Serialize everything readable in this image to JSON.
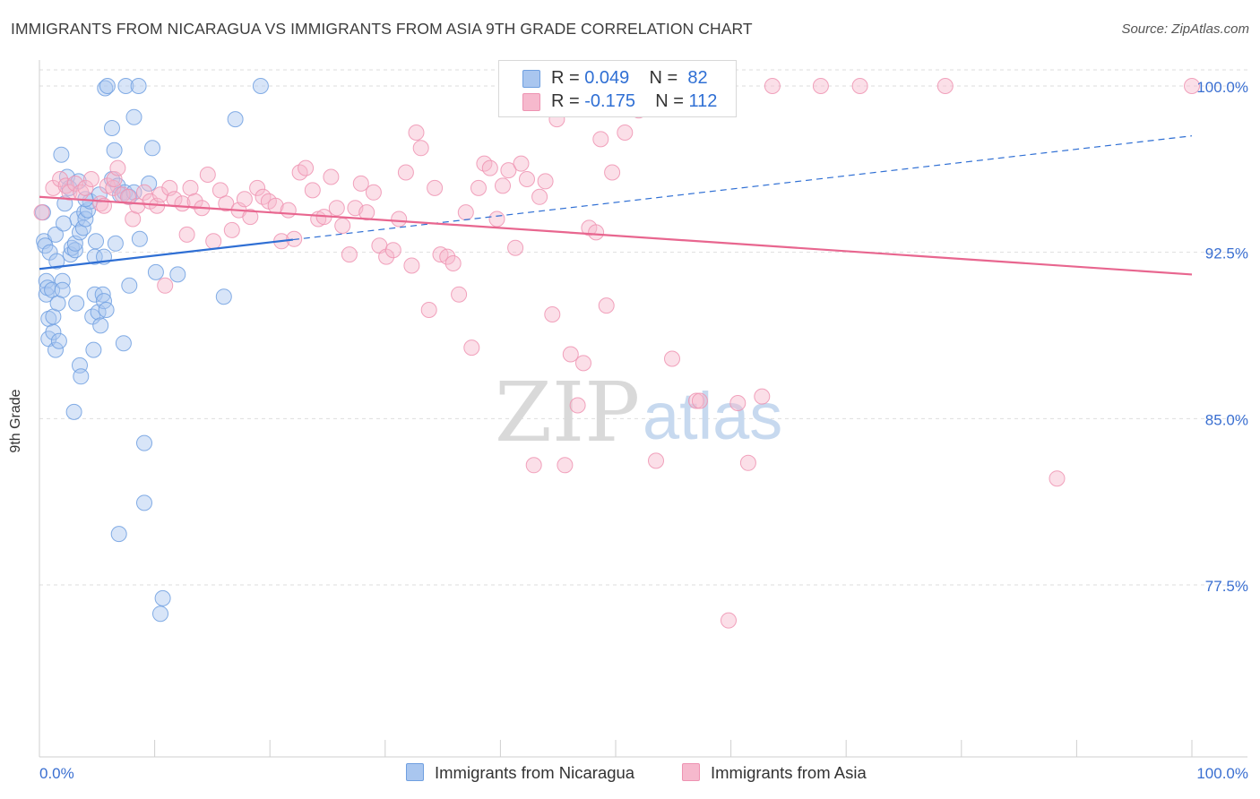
{
  "title": "IMMIGRANTS FROM NICARAGUA VS IMMIGRANTS FROM ASIA 9TH GRADE CORRELATION CHART",
  "source": "Source: ZipAtlas.com",
  "watermark": {
    "zip": "ZIP",
    "atlas": "atlas"
  },
  "legend": {
    "nicaragua": {
      "r_label": "R =",
      "r_value": "0.049",
      "n_label": "N =",
      "n_value": "82"
    },
    "asia": {
      "r_label": "R =",
      "r_value": "-0.175",
      "n_label": "N =",
      "n_value": "112"
    }
  },
  "bottom_legend": {
    "nicaragua": "Immigrants from Nicaragua",
    "asia": "Immigrants from Asia"
  },
  "colors": {
    "nicaragua_fill": "#a9c6ef",
    "nicaragua_stroke": "#6f9fe0",
    "nicaragua_line": "#2f6fd4",
    "asia_fill": "#f6b9cd",
    "asia_stroke": "#ee93b2",
    "asia_line": "#e8668f",
    "tick_label": "#3a6fd1",
    "grid": "#dedede"
  },
  "chart_data": {
    "type": "scatter",
    "title": "IMMIGRANTS FROM NICARAGUA VS IMMIGRANTS FROM ASIA 9TH GRADE CORRELATION CHART",
    "xlabel": "",
    "ylabel": "9th Grade",
    "xlim": [
      0,
      100
    ],
    "ylim": [
      70.0,
      100.8
    ],
    "x_tick_labels": [
      "0.0%",
      "100.0%"
    ],
    "y_ticks": [
      77.5,
      85.0,
      92.5,
      100.0
    ],
    "y_tick_labels": [
      "77.5%",
      "85.0%",
      "92.5%",
      "100.0%"
    ],
    "grid": true,
    "series": [
      {
        "name": "Immigrants from Nicaragua",
        "r": 0.049,
        "n": 82,
        "trend": {
          "x0": 0,
          "y0": 91.75,
          "x1": 100,
          "y1": 97.75,
          "solid_until": 22
        },
        "points": [
          [
            0.3,
            94.3
          ],
          [
            0.4,
            93.0
          ],
          [
            0.5,
            92.8
          ],
          [
            0.6,
            91.2
          ],
          [
            0.6,
            90.6
          ],
          [
            0.7,
            90.9
          ],
          [
            0.8,
            89.5
          ],
          [
            0.8,
            88.6
          ],
          [
            0.9,
            92.5
          ],
          [
            1.1,
            90.8
          ],
          [
            1.2,
            89.6
          ],
          [
            1.2,
            88.9
          ],
          [
            1.4,
            88.1
          ],
          [
            1.5,
            92.1
          ],
          [
            1.6,
            90.2
          ],
          [
            1.7,
            88.5
          ],
          [
            1.9,
            96.9
          ],
          [
            2.0,
            91.2
          ],
          [
            2.0,
            90.8
          ],
          [
            2.2,
            94.7
          ],
          [
            2.4,
            95.9
          ],
          [
            2.6,
            95.4
          ],
          [
            2.7,
            92.4
          ],
          [
            2.8,
            92.7
          ],
          [
            3.0,
            85.3
          ],
          [
            3.1,
            92.6
          ],
          [
            3.1,
            92.9
          ],
          [
            3.2,
            90.2
          ],
          [
            3.3,
            94.0
          ],
          [
            3.5,
            93.4
          ],
          [
            3.5,
            87.4
          ],
          [
            3.6,
            86.9
          ],
          [
            3.8,
            93.6
          ],
          [
            3.9,
            94.3
          ],
          [
            4.0,
            94.0
          ],
          [
            4.2,
            94.4
          ],
          [
            4.4,
            94.8
          ],
          [
            4.6,
            89.6
          ],
          [
            4.7,
            88.1
          ],
          [
            4.8,
            92.3
          ],
          [
            4.8,
            90.6
          ],
          [
            4.9,
            93.0
          ],
          [
            5.1,
            89.8
          ],
          [
            5.3,
            89.2
          ],
          [
            5.5,
            90.6
          ],
          [
            5.6,
            90.3
          ],
          [
            5.6,
            92.3
          ],
          [
            5.8,
            89.9
          ],
          [
            5.2,
            95.1
          ],
          [
            5.7,
            99.9
          ],
          [
            5.9,
            100.0
          ],
          [
            6.3,
            98.1
          ],
          [
            6.3,
            95.8
          ],
          [
            6.5,
            97.1
          ],
          [
            6.6,
            92.9
          ],
          [
            6.8,
            95.5
          ],
          [
            7.0,
            95.1
          ],
          [
            7.3,
            88.4
          ],
          [
            7.5,
            100.0
          ],
          [
            7.4,
            95.2
          ],
          [
            7.8,
            95.0
          ],
          [
            7.8,
            91.0
          ],
          [
            8.2,
            98.6
          ],
          [
            8.2,
            95.2
          ],
          [
            8.6,
            100.0
          ],
          [
            8.7,
            93.1
          ],
          [
            9.1,
            83.9
          ],
          [
            9.1,
            81.2
          ],
          [
            9.5,
            95.6
          ],
          [
            9.8,
            97.2
          ],
          [
            10.1,
            91.6
          ],
          [
            10.5,
            76.2
          ],
          [
            10.7,
            76.9
          ],
          [
            12.0,
            91.5
          ],
          [
            16.0,
            90.5
          ],
          [
            17.0,
            98.5
          ],
          [
            19.2,
            100.0
          ],
          [
            3.4,
            95.7
          ],
          [
            6.9,
            79.8
          ],
          [
            1.4,
            93.3
          ],
          [
            2.1,
            93.8
          ],
          [
            4.0,
            94.9
          ]
        ]
      },
      {
        "name": "Immigrants from Asia",
        "r": -0.175,
        "n": 112,
        "trend": {
          "x0": 0,
          "y0": 95.0,
          "x1": 100,
          "y1": 91.5
        },
        "points": [
          [
            0.2,
            94.3
          ],
          [
            1.2,
            95.4
          ],
          [
            1.8,
            95.8
          ],
          [
            2.3,
            95.5
          ],
          [
            2.6,
            95.2
          ],
          [
            3.1,
            95.6
          ],
          [
            3.6,
            95.2
          ],
          [
            4.0,
            95.4
          ],
          [
            4.5,
            95.8
          ],
          [
            5.3,
            94.7
          ],
          [
            5.6,
            94.6
          ],
          [
            5.9,
            95.5
          ],
          [
            6.4,
            95.4
          ],
          [
            6.5,
            95.8
          ],
          [
            6.8,
            96.3
          ],
          [
            7.2,
            95.1
          ],
          [
            7.7,
            95.0
          ],
          [
            8.1,
            94.0
          ],
          [
            8.5,
            94.6
          ],
          [
            9.1,
            95.2
          ],
          [
            9.6,
            94.8
          ],
          [
            10.2,
            94.6
          ],
          [
            10.5,
            95.1
          ],
          [
            10.9,
            91.0
          ],
          [
            11.3,
            95.4
          ],
          [
            11.7,
            94.9
          ],
          [
            12.4,
            94.7
          ],
          [
            12.8,
            93.3
          ],
          [
            13.1,
            95.4
          ],
          [
            13.5,
            94.8
          ],
          [
            14.1,
            94.5
          ],
          [
            14.6,
            96.0
          ],
          [
            15.1,
            93.0
          ],
          [
            15.7,
            95.3
          ],
          [
            16.2,
            94.7
          ],
          [
            16.7,
            93.5
          ],
          [
            17.3,
            94.4
          ],
          [
            17.8,
            94.9
          ],
          [
            18.3,
            94.1
          ],
          [
            18.9,
            95.4
          ],
          [
            19.4,
            95.0
          ],
          [
            19.9,
            94.8
          ],
          [
            20.5,
            94.6
          ],
          [
            21.0,
            93.0
          ],
          [
            21.6,
            94.4
          ],
          [
            22.1,
            93.1
          ],
          [
            22.6,
            96.1
          ],
          [
            23.1,
            96.3
          ],
          [
            23.7,
            95.3
          ],
          [
            24.2,
            94.0
          ],
          [
            24.7,
            94.1
          ],
          [
            25.3,
            95.9
          ],
          [
            25.8,
            94.5
          ],
          [
            26.3,
            93.7
          ],
          [
            26.9,
            92.4
          ],
          [
            27.4,
            94.5
          ],
          [
            27.9,
            95.6
          ],
          [
            28.4,
            94.3
          ],
          [
            29.0,
            95.2
          ],
          [
            29.5,
            92.8
          ],
          [
            30.1,
            92.3
          ],
          [
            30.7,
            92.6
          ],
          [
            31.2,
            94.0
          ],
          [
            31.8,
            96.1
          ],
          [
            32.3,
            91.9
          ],
          [
            32.7,
            97.9
          ],
          [
            33.1,
            97.2
          ],
          [
            33.8,
            89.9
          ],
          [
            34.3,
            95.4
          ],
          [
            34.8,
            92.4
          ],
          [
            35.4,
            92.3
          ],
          [
            35.9,
            92.0
          ],
          [
            36.4,
            90.6
          ],
          [
            37.0,
            94.3
          ],
          [
            37.5,
            88.2
          ],
          [
            38.1,
            95.4
          ],
          [
            38.6,
            96.5
          ],
          [
            39.1,
            96.3
          ],
          [
            39.7,
            94.0
          ],
          [
            40.2,
            95.5
          ],
          [
            40.7,
            96.2
          ],
          [
            41.3,
            92.7
          ],
          [
            41.8,
            96.5
          ],
          [
            42.3,
            95.8
          ],
          [
            42.9,
            82.9
          ],
          [
            43.4,
            95.0
          ],
          [
            43.9,
            95.7
          ],
          [
            44.5,
            89.7
          ],
          [
            44.9,
            98.5
          ],
          [
            45.6,
            82.9
          ],
          [
            46.1,
            87.9
          ],
          [
            46.7,
            85.6
          ],
          [
            47.2,
            87.5
          ],
          [
            47.7,
            93.6
          ],
          [
            48.3,
            93.4
          ],
          [
            48.7,
            97.6
          ],
          [
            49.2,
            90.1
          ],
          [
            49.7,
            96.1
          ],
          [
            50.8,
            97.9
          ],
          [
            52.0,
            98.9
          ],
          [
            52.6,
            100.0
          ],
          [
            53.5,
            83.1
          ],
          [
            54.1,
            100.0
          ],
          [
            54.9,
            87.7
          ],
          [
            57.0,
            85.8
          ],
          [
            59.8,
            75.9
          ],
          [
            61.5,
            83.0
          ],
          [
            62.7,
            86.0
          ],
          [
            63.6,
            100.0
          ],
          [
            67.8,
            100.0
          ],
          [
            71.2,
            100.0
          ],
          [
            78.6,
            100.0
          ],
          [
            88.3,
            82.3
          ],
          [
            100.0,
            100.0
          ],
          [
            57.3,
            85.8
          ],
          [
            60.6,
            85.7
          ]
        ]
      }
    ]
  }
}
